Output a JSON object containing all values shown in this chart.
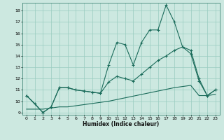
{
  "xlabel": "Humidex (Indice chaleur)",
  "bg_color": "#cce8e0",
  "grid_color": "#99ccc0",
  "line_color": "#1a6b5a",
  "xlim": [
    -0.5,
    23.5
  ],
  "ylim": [
    8.8,
    18.7
  ],
  "xticks": [
    0,
    1,
    2,
    3,
    4,
    5,
    6,
    7,
    8,
    9,
    10,
    11,
    12,
    13,
    14,
    15,
    16,
    17,
    18,
    19,
    20,
    21,
    22,
    23
  ],
  "yticks": [
    9,
    10,
    11,
    12,
    13,
    14,
    15,
    16,
    17,
    18
  ],
  "line1_x": [
    0,
    1,
    2,
    3,
    4,
    5,
    6,
    7,
    8,
    9,
    10,
    11,
    12,
    13,
    14,
    15,
    16,
    17,
    18,
    19,
    20,
    21,
    22,
    23
  ],
  "line1_y": [
    10.5,
    9.8,
    9.0,
    9.5,
    11.2,
    11.2,
    11.0,
    10.9,
    10.8,
    10.7,
    13.2,
    15.2,
    15.0,
    13.2,
    15.2,
    16.3,
    16.3,
    18.5,
    17.0,
    14.8,
    14.5,
    12.0,
    10.5,
    11.0
  ],
  "line2_x": [
    0,
    2,
    3,
    4,
    5,
    6,
    7,
    8,
    9,
    10,
    11,
    12,
    13,
    14,
    15,
    16,
    17,
    18,
    19,
    20,
    21,
    22,
    23
  ],
  "line2_y": [
    10.5,
    9.0,
    9.5,
    11.2,
    11.2,
    11.0,
    10.9,
    10.8,
    10.7,
    11.7,
    12.2,
    12.0,
    11.8,
    12.4,
    13.0,
    13.6,
    14.0,
    14.5,
    14.8,
    14.2,
    11.8,
    10.5,
    11.0
  ],
  "line3_x": [
    0,
    1,
    2,
    3,
    4,
    5,
    6,
    7,
    8,
    9,
    10,
    11,
    12,
    13,
    14,
    15,
    16,
    17,
    18,
    19,
    20,
    21,
    22,
    23
  ],
  "line3_y": [
    9.3,
    9.3,
    9.3,
    9.4,
    9.5,
    9.5,
    9.6,
    9.7,
    9.8,
    9.9,
    10.0,
    10.15,
    10.3,
    10.45,
    10.6,
    10.75,
    10.9,
    11.05,
    11.2,
    11.3,
    11.4,
    10.5,
    10.5,
    10.6
  ]
}
